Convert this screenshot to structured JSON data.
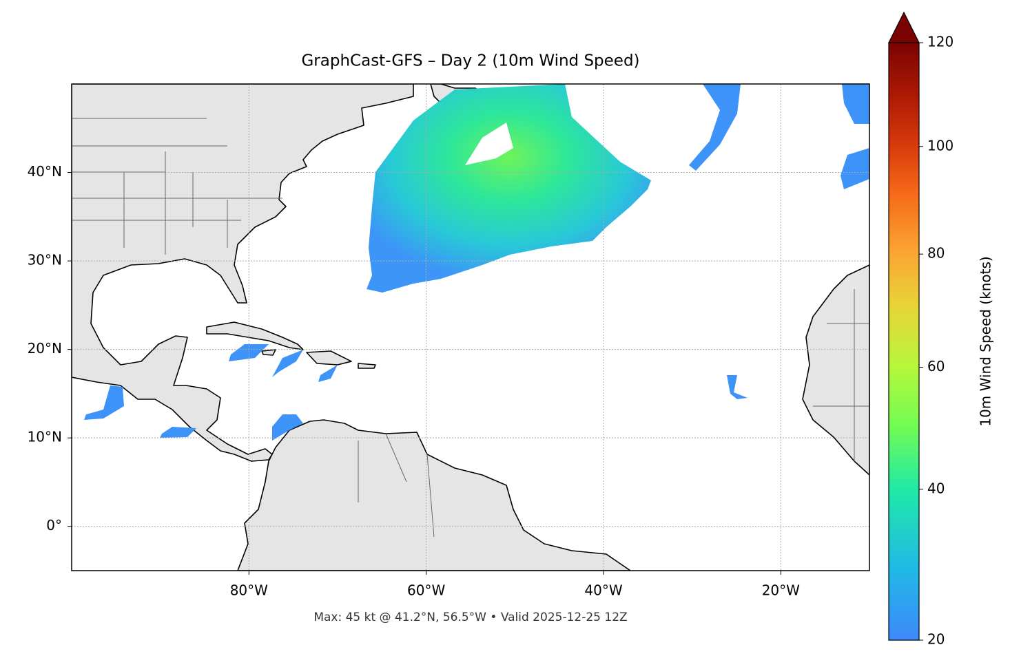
{
  "chart_data": {
    "type": "map",
    "title": "GraphCast-GFS – Day 2 (10m Wind Speed)",
    "footer": "Max: 45 kt @ 41.2°N, 56.5°W • Valid 2025-12-25 12Z",
    "xlim": [
      -100,
      -10
    ],
    "ylim": [
      -5,
      50
    ],
    "xticks": [
      {
        "value": -80,
        "label": "80°W"
      },
      {
        "value": -60,
        "label": "60°W"
      },
      {
        "value": -40,
        "label": "40°W"
      },
      {
        "value": -20,
        "label": "20°W"
      }
    ],
    "yticks": [
      {
        "value": 0,
        "label": "0°"
      },
      {
        "value": 10,
        "label": "10°N"
      },
      {
        "value": 20,
        "label": "20°N"
      },
      {
        "value": 30,
        "label": "30°N"
      },
      {
        "value": 40,
        "label": "40°N"
      }
    ],
    "grid": true,
    "colorbar": {
      "label": "10m Wind Speed (knots)",
      "lim": [
        20,
        120
      ],
      "ticks": [
        20,
        40,
        60,
        80,
        100,
        120
      ],
      "norm": "power",
      "gamma": 0.855,
      "extend": "max"
    }
  }
}
